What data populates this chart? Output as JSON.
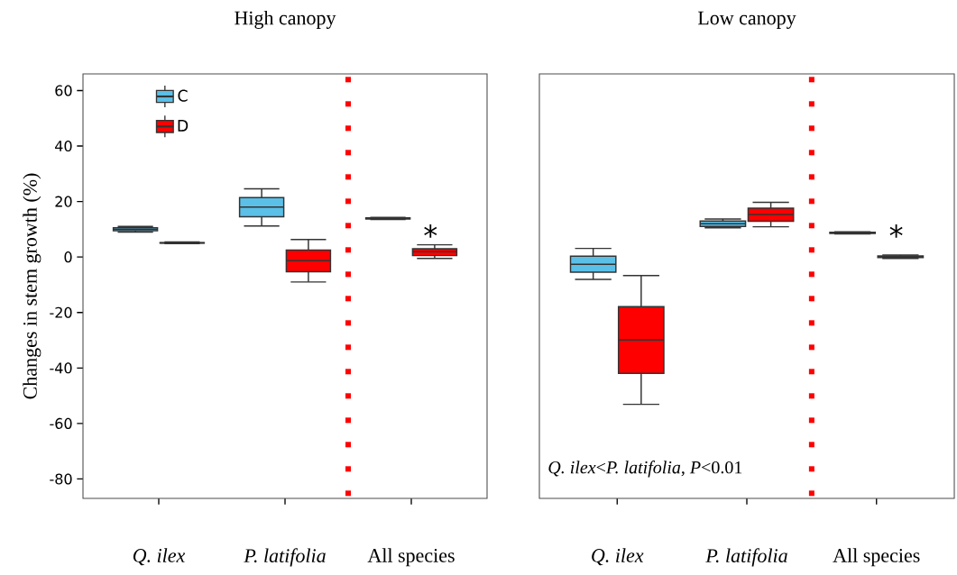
{
  "chart_data": [
    {
      "type": "box",
      "title": "High canopy",
      "ylabel": "Changes in stem growth (%)",
      "categories": [
        "*Q. ilex*",
        "*P. latifolia*",
        "All species"
      ],
      "series": [
        {
          "name": "C",
          "color": "#5bc0e8",
          "boxes": [
            {
              "low": 9,
              "q1": 9.5,
              "median": 10,
              "q3": 10.5,
              "high": 11
            },
            {
              "low": 11.2,
              "q1": 14.5,
              "median": 18,
              "q3": 21.4,
              "high": 24.6
            },
            {
              "low": 13.5,
              "q1": 13.7,
              "median": 13.9,
              "q3": 14.1,
              "high": 14.3
            }
          ]
        },
        {
          "name": "D",
          "color": "#ff0000",
          "boxes": [
            {
              "low": 4.8,
              "q1": 5,
              "median": 5.1,
              "q3": 5.2,
              "high": 5.4
            },
            {
              "low": -9,
              "q1": -5.3,
              "median": -1.3,
              "q3": 2.5,
              "high": 6.3
            },
            {
              "low": -0.5,
              "q1": 0.5,
              "median": 1.9,
              "q3": 3,
              "high": 4.4
            }
          ]
        }
      ],
      "ylim": [
        -87,
        66
      ],
      "yticks": [
        -80,
        -60,
        -40,
        -20,
        0,
        20,
        40,
        60
      ],
      "legend": "top left",
      "annotations": [
        "*"
      ]
    },
    {
      "type": "box",
      "title": "Low canopy",
      "categories": [
        "*Q. ilex*",
        "*P. latifolia*",
        "All species"
      ],
      "series": [
        {
          "color": "#5bc0e8",
          "boxes": [
            {
              "low": -8.1,
              "q1": -5.5,
              "median": -2.6,
              "q3": 0.3,
              "high": 3.1
            },
            {
              "low": 10.5,
              "q1": 11,
              "median": 12,
              "q3": 13,
              "high": 13.7
            },
            {
              "low": 8.3,
              "q1": 8.5,
              "median": 8.7,
              "q3": 8.9,
              "high": 9.1
            }
          ]
        },
        {
          "color": "#ff0000",
          "boxes": [
            {
              "low": -53.1,
              "q1": -41.9,
              "median": -29.9,
              "q3": -17.9,
              "high": -6.7
            },
            {
              "low": 10.9,
              "q1": 12.9,
              "median": 15.3,
              "q3": 17.6,
              "high": 19.7
            },
            {
              "low": -0.5,
              "q1": -0.2,
              "median": 0.1,
              "q3": 0.4,
              "high": 0.7
            }
          ]
        }
      ],
      "ylim": [
        -87,
        66
      ],
      "tick_labels": "x",
      "annotations": [
        "*Q. ilex*<*P. latifolia*, *P*<0.01",
        "*"
      ]
    }
  ]
}
